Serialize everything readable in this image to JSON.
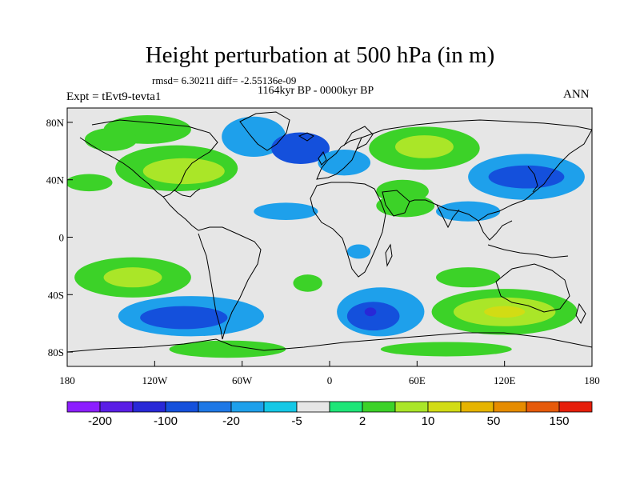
{
  "title": "Height perturbation at 500 hPa (in m)",
  "stats_line": "rmsd= 6.30211 diff= -2.55136e-09",
  "period_line": "1164kyr BP - 0000kyr BP",
  "experiment_label": "Expt = tEvt9-tevta1",
  "season_label": "ANN",
  "map": {
    "projection": "cylindrical-equidistant",
    "lon_range": [
      -180,
      180
    ],
    "lat_range": [
      -90,
      90
    ],
    "lat_ticks": [
      {
        "value": 80,
        "label": "80N"
      },
      {
        "value": 40,
        "label": "40N"
      },
      {
        "value": 0,
        "label": "0"
      },
      {
        "value": -40,
        "label": "40S"
      },
      {
        "value": -80,
        "label": "80S"
      }
    ],
    "lon_ticks": [
      {
        "value": -180,
        "label": "180"
      },
      {
        "value": -120,
        "label": "120W"
      },
      {
        "value": -60,
        "label": "60W"
      },
      {
        "value": 0,
        "label": "0"
      },
      {
        "value": 60,
        "label": "60E"
      },
      {
        "value": 120,
        "label": "120E"
      },
      {
        "value": 180,
        "label": "180"
      }
    ],
    "field_regions": [
      {
        "name": "arctic-n-america-positive",
        "lon": -125,
        "lat": 75,
        "rx": 30,
        "ry": 10,
        "level": "pos1"
      },
      {
        "name": "arctic-alaska-positive",
        "lon": -150,
        "lat": 68,
        "rx": 18,
        "ry": 8,
        "level": "pos1"
      },
      {
        "name": "greenland-negative",
        "lon": -52,
        "lat": 70,
        "rx": 22,
        "ry": 14,
        "level": "neg1"
      },
      {
        "name": "north-atlantic-negative",
        "lon": -20,
        "lat": 62,
        "rx": 20,
        "ry": 11,
        "level": "neg2"
      },
      {
        "name": "north-america-positive",
        "lon": -105,
        "lat": 48,
        "rx": 42,
        "ry": 16,
        "level": "pos1"
      },
      {
        "name": "north-america-positive-core",
        "lon": -100,
        "lat": 46,
        "rx": 28,
        "ry": 9,
        "level": "pos2"
      },
      {
        "name": "north-pacific-positive",
        "lon": -165,
        "lat": 38,
        "rx": 16,
        "ry": 6,
        "level": "pos1"
      },
      {
        "name": "eurasia-positive",
        "lon": 65,
        "lat": 62,
        "rx": 38,
        "ry": 15,
        "level": "pos1"
      },
      {
        "name": "eurasia-positive-core",
        "lon": 65,
        "lat": 63,
        "rx": 20,
        "ry": 8,
        "level": "pos2"
      },
      {
        "name": "europe-negative",
        "lon": 10,
        "lat": 52,
        "rx": 18,
        "ry": 9,
        "level": "neg1"
      },
      {
        "name": "middle-east-positive",
        "lon": 50,
        "lat": 32,
        "rx": 18,
        "ry": 8,
        "level": "pos1"
      },
      {
        "name": "north-pacific-negative",
        "lon": 135,
        "lat": 42,
        "rx": 40,
        "ry": 16,
        "level": "neg1"
      },
      {
        "name": "north-pacific-negative-core",
        "lon": 135,
        "lat": 42,
        "rx": 26,
        "ry": 8,
        "level": "neg2"
      },
      {
        "name": "atlantic-subtropical-negative",
        "lon": -30,
        "lat": 18,
        "rx": 22,
        "ry": 6,
        "level": "neg1"
      },
      {
        "name": "africa-arabia-positive",
        "lon": 52,
        "lat": 22,
        "rx": 20,
        "ry": 8,
        "level": "pos1"
      },
      {
        "name": "indian-ocean-negative",
        "lon": 95,
        "lat": 18,
        "rx": 22,
        "ry": 7,
        "level": "neg1"
      },
      {
        "name": "tropical-atlantic-negative",
        "lon": 20,
        "lat": -10,
        "rx": 8,
        "ry": 5,
        "level": "neg1"
      },
      {
        "name": "indian-ocean-positive-tropical",
        "lon": 95,
        "lat": -28,
        "rx": 22,
        "ry": 7,
        "level": "pos1"
      },
      {
        "name": "south-pacific-positive",
        "lon": -135,
        "lat": -28,
        "rx": 40,
        "ry": 14,
        "level": "pos1"
      },
      {
        "name": "south-pacific-positive-core",
        "lon": -135,
        "lat": -28,
        "rx": 20,
        "ry": 7,
        "level": "pos2"
      },
      {
        "name": "south-atlantic-positive",
        "lon": -15,
        "lat": -32,
        "rx": 10,
        "ry": 6,
        "level": "pos1"
      },
      {
        "name": "south-pacific-negative",
        "lon": -95,
        "lat": -55,
        "rx": 50,
        "ry": 14,
        "level": "neg1"
      },
      {
        "name": "south-pacific-negative-core",
        "lon": -100,
        "lat": -56,
        "rx": 30,
        "ry": 8,
        "level": "neg2"
      },
      {
        "name": "southern-ocean-negative",
        "lon": 35,
        "lat": -52,
        "rx": 30,
        "ry": 17,
        "level": "neg1"
      },
      {
        "name": "southern-ocean-negative-core",
        "lon": 30,
        "lat": -55,
        "rx": 18,
        "ry": 10,
        "level": "neg2"
      },
      {
        "name": "southern-ocean-negative-center",
        "lon": 28,
        "lat": -52,
        "rx": 4,
        "ry": 3,
        "level": "neg3"
      },
      {
        "name": "southern-indian-positive",
        "lon": 120,
        "lat": -52,
        "rx": 50,
        "ry": 16,
        "level": "pos1"
      },
      {
        "name": "southern-indian-positive-mid",
        "lon": 120,
        "lat": -52,
        "rx": 35,
        "ry": 10,
        "level": "pos2"
      },
      {
        "name": "southern-indian-positive-core",
        "lon": 120,
        "lat": -52,
        "rx": 14,
        "ry": 4,
        "level": "pos3"
      },
      {
        "name": "antarctic-positive",
        "lon": -70,
        "lat": -78,
        "rx": 40,
        "ry": 6,
        "level": "pos1"
      },
      {
        "name": "antarctic-east-positive",
        "lon": 80,
        "lat": -78,
        "rx": 45,
        "ry": 5,
        "level": "pos1"
      }
    ]
  },
  "colorbar": {
    "colors": [
      "#8c1eff",
      "#5a1ee6",
      "#2828d7",
      "#1450dc",
      "#1e78e6",
      "#1ea0eb",
      "#14c8e6",
      "#e6e6e6",
      "#1ee678",
      "#3cd228",
      "#aae628",
      "#d2dc14",
      "#e6b400",
      "#e68c00",
      "#e65a0a",
      "#e61e0a"
    ],
    "labels": [
      "-200",
      "-100",
      "-20",
      "-5",
      "2",
      "10",
      "50",
      "150"
    ],
    "level_colors": {
      "neg3": "#2828d7",
      "neg2": "#1450dc",
      "neg1": "#1ea0eb",
      "pos1": "#3cd228",
      "pos2": "#aae628",
      "pos3": "#d2dc14"
    }
  }
}
